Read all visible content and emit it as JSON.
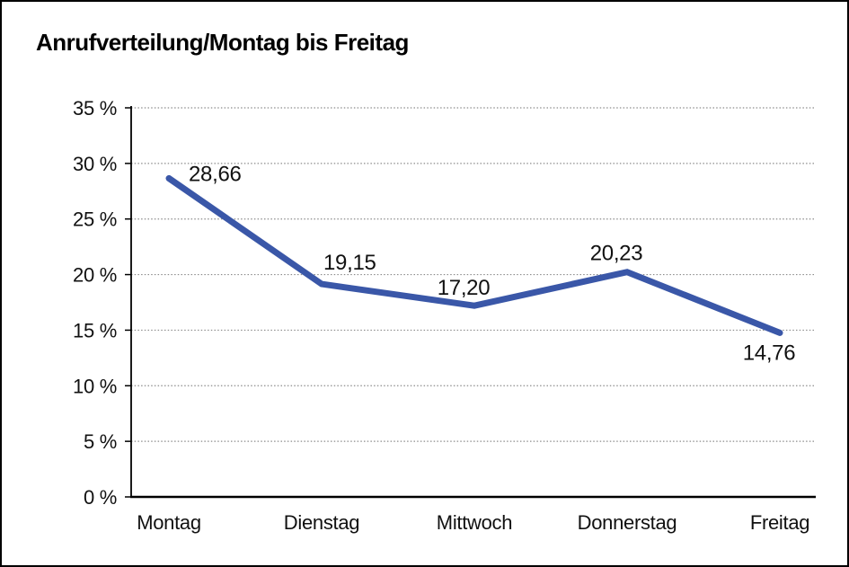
{
  "chart_data": {
    "type": "line",
    "title": "Anrufverteilung/Montag bis Freitag",
    "categories": [
      "Montag",
      "Dienstag",
      "Mittwoch",
      "Donnerstag",
      "Freitag"
    ],
    "values": [
      28.66,
      19.15,
      17.2,
      20.23,
      14.76
    ],
    "value_labels": [
      "28,66",
      "19,15",
      "17,20",
      "20,23",
      "14,76"
    ],
    "ytick_labels": [
      "0 %",
      "5 %",
      "10 %",
      "15 %",
      "20 %",
      "25 %",
      "30 %",
      "35 %"
    ],
    "ylim": [
      0,
      35
    ],
    "ytick_step": 5,
    "xlabel": "",
    "ylabel": "",
    "grid": "dotted-horizontal",
    "legend": "none",
    "line_color": "#3a57a8",
    "grid_color": "#8c8c8c",
    "axis_color": "#000000",
    "text_color": "#111111"
  }
}
